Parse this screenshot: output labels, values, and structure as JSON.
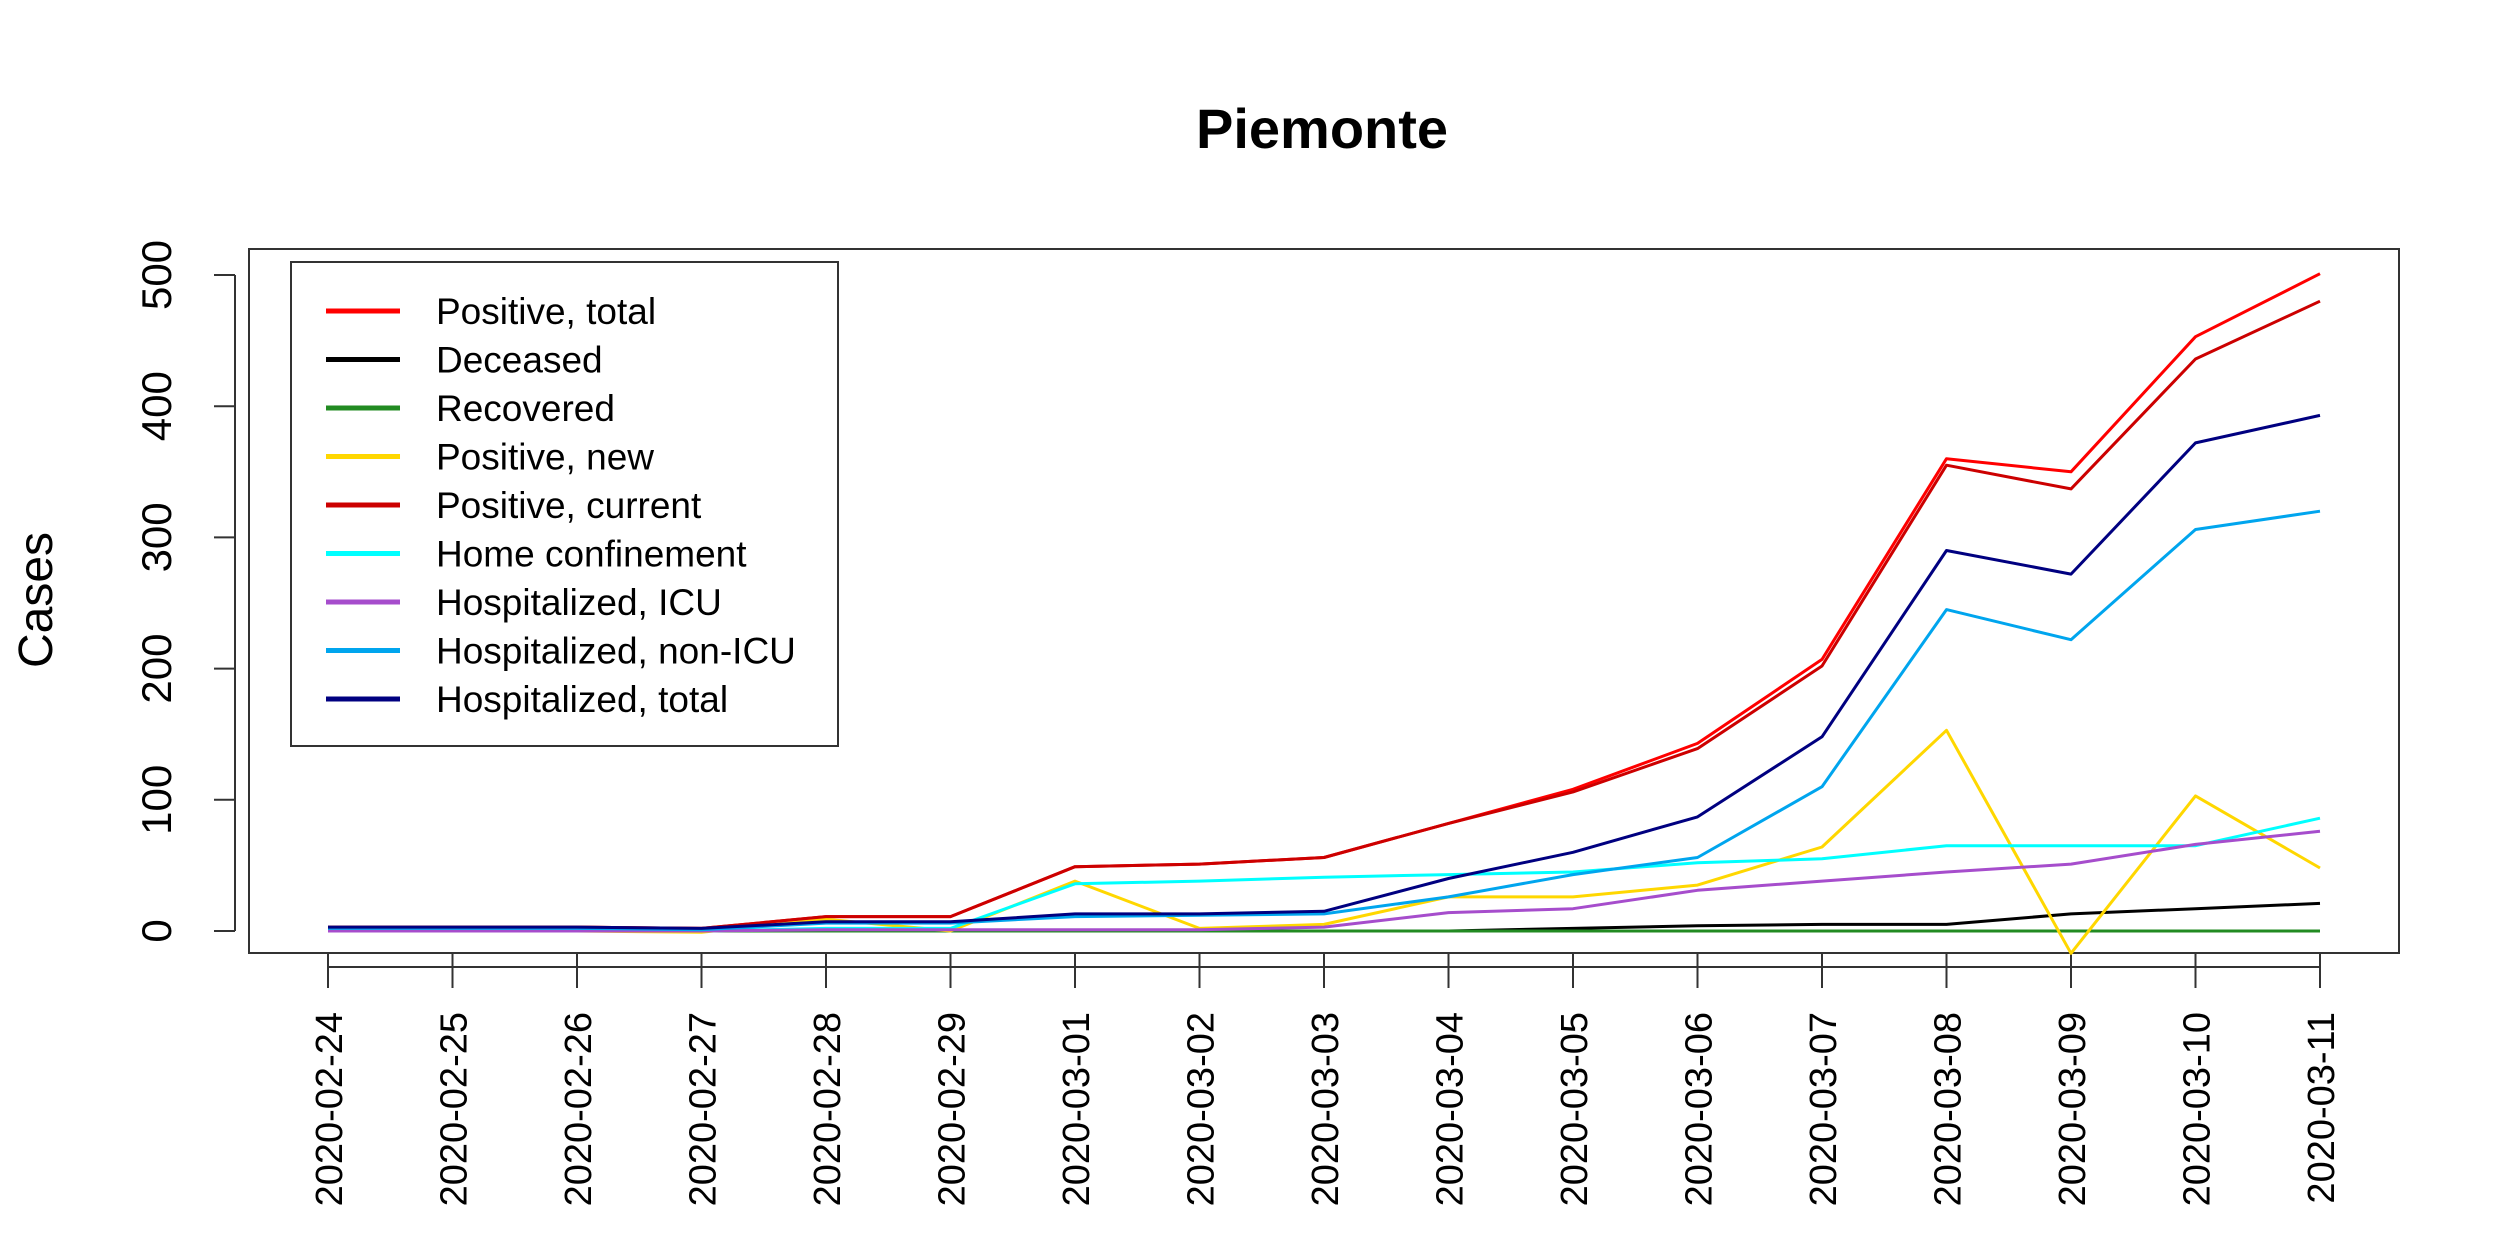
{
  "chart_data": {
    "type": "line",
    "title": "Piemonte",
    "xlabel": "",
    "ylabel": "Cases",
    "ylim": [
      -20,
      520
    ],
    "yticks": [
      0,
      100,
      200,
      300,
      400,
      500
    ],
    "grid": false,
    "legend_position": "top-left",
    "x": [
      "2020-02-24",
      "2020-02-25",
      "2020-02-26",
      "2020-02-27",
      "2020-02-28",
      "2020-02-29",
      "2020-03-01",
      "2020-03-02",
      "2020-03-03",
      "2020-03-04",
      "2020-03-05",
      "2020-03-06",
      "2020-03-07",
      "2020-03-08",
      "2020-03-09",
      "2020-03-10",
      "2020-03-11"
    ],
    "series": [
      {
        "name": "Positive, total",
        "color": "#ff0000",
        "values": [
          3,
          3,
          3,
          2,
          11,
          11,
          49,
          51,
          56,
          82,
          108,
          143,
          207,
          360,
          350,
          453,
          501
        ]
      },
      {
        "name": "Deceased",
        "color": "#000000",
        "values": [
          0,
          0,
          0,
          0,
          0,
          0,
          0,
          0,
          0,
          0,
          2,
          4,
          5,
          5,
          13,
          17,
          21
        ]
      },
      {
        "name": "Recovered",
        "color": "#228b22",
        "values": [
          0,
          0,
          0,
          0,
          0,
          0,
          0,
          0,
          0,
          0,
          0,
          0,
          0,
          0,
          0,
          0,
          0
        ]
      },
      {
        "name": "Positive, new",
        "color": "#ffd700",
        "values": [
          3,
          0,
          0,
          -1,
          9,
          0,
          38,
          2,
          5,
          26,
          26,
          35,
          64,
          153,
          -17,
          103,
          48
        ]
      },
      {
        "name": "Positive, current",
        "color": "#cc0000",
        "values": [
          3,
          3,
          3,
          2,
          11,
          11,
          49,
          51,
          56,
          82,
          106,
          139,
          202,
          355,
          337,
          436,
          480
        ]
      },
      {
        "name": "Home confinement",
        "color": "#00ffff",
        "values": [
          0,
          0,
          0,
          0,
          2,
          2,
          36,
          38,
          41,
          43,
          45,
          52,
          55,
          65,
          65,
          65,
          86
        ]
      },
      {
        "name": "Hospitalized, ICU",
        "color": "#a64dcc",
        "values": [
          0,
          0,
          0,
          0,
          1,
          1,
          1,
          1,
          3,
          14,
          17,
          31,
          38,
          45,
          51,
          66,
          76
        ]
      },
      {
        "name": "Hospitalized, non-ICU",
        "color": "#00a5ee",
        "values": [
          2,
          2,
          2,
          1,
          6,
          6,
          11,
          12,
          13,
          26,
          43,
          56,
          110,
          245,
          222,
          306,
          320
        ]
      },
      {
        "name": "Hospitalized, total",
        "color": "#000080",
        "values": [
          3,
          3,
          3,
          2,
          7,
          7,
          13,
          13,
          15,
          40,
          60,
          87,
          148,
          290,
          272,
          372,
          393
        ]
      }
    ]
  }
}
